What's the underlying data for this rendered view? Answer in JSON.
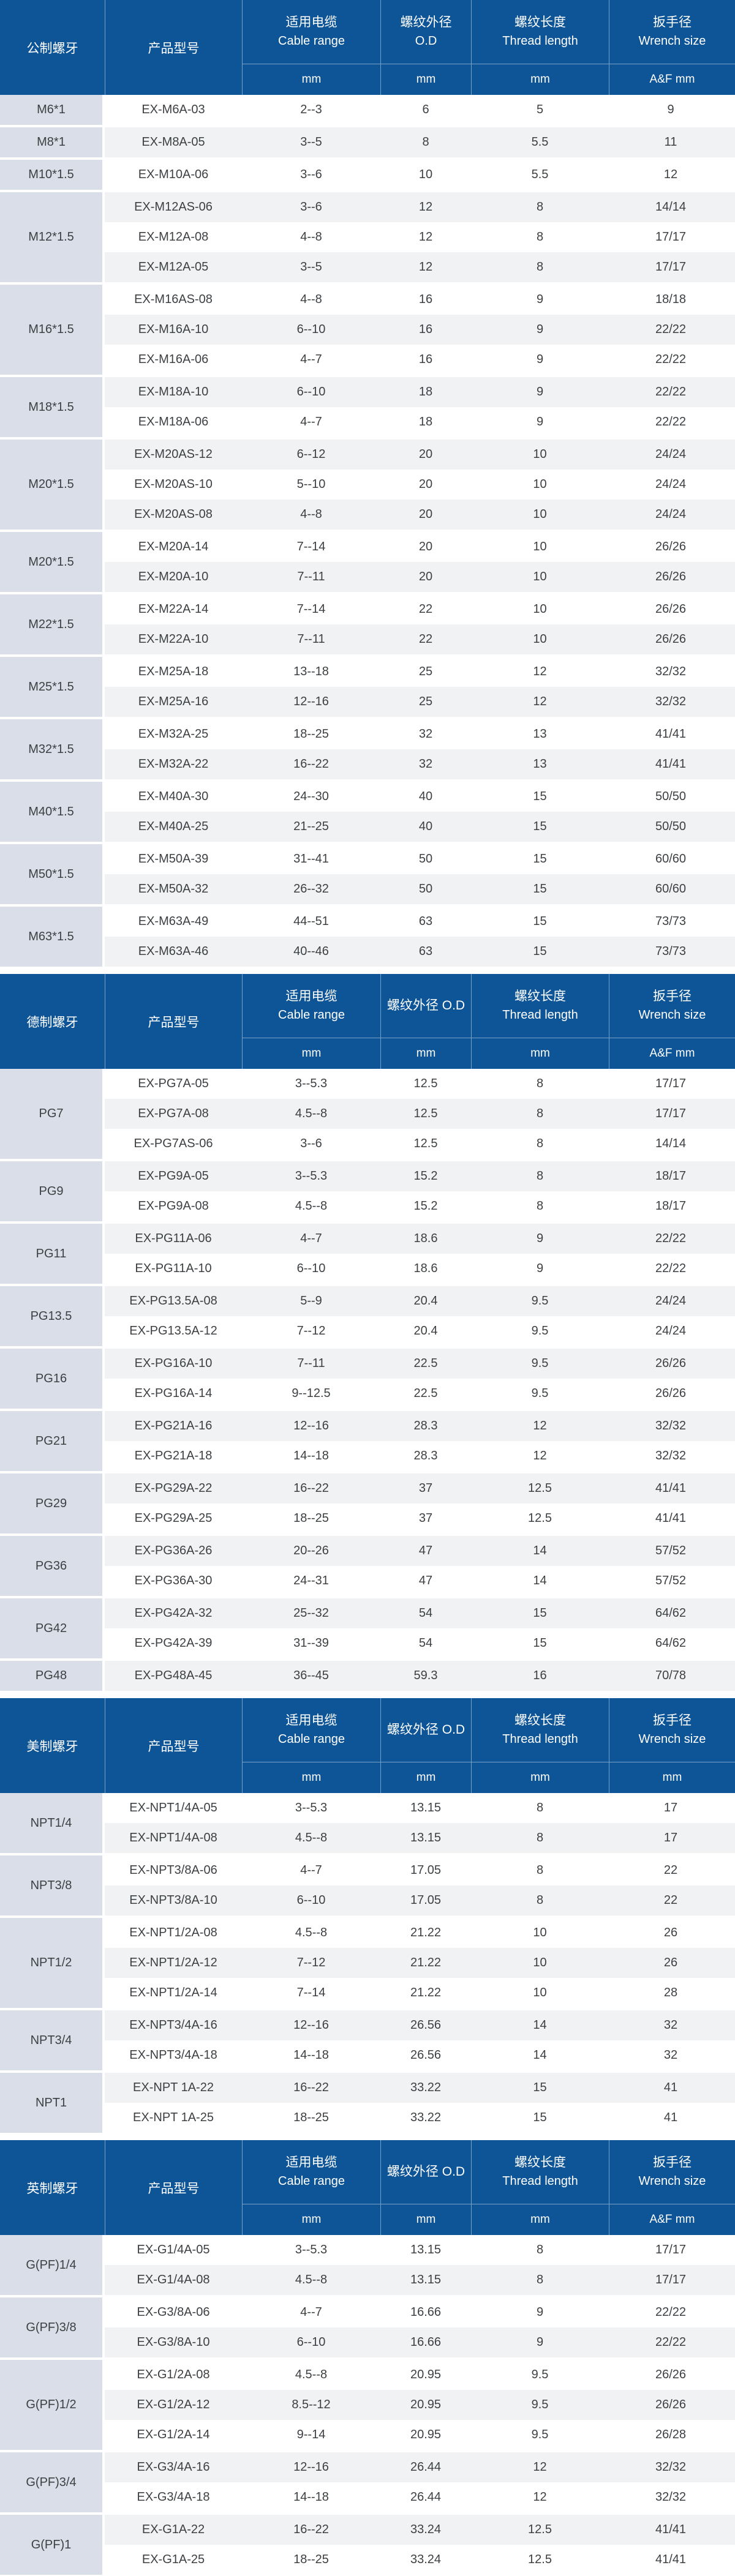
{
  "colors": {
    "header_blue": "#0e5598",
    "label_column_bg": "#d9dee8",
    "stripe_row_bg": "#f1f2f3",
    "plain_row_bg": "#ffffff",
    "body_text": "#3d4043",
    "header_text": "#ffffff"
  },
  "sections": [
    {
      "thread_header": "公制螺牙",
      "model_header": "产品型号",
      "col_headers": [
        {
          "lines": [
            "适用电缆",
            "Cable range"
          ]
        },
        {
          "lines": [
            "螺纹外径",
            "O.D"
          ]
        },
        {
          "lines": [
            "螺纹长度",
            "Thread length"
          ]
        },
        {
          "lines": [
            "扳手径",
            "Wrench size"
          ]
        }
      ],
      "units": [
        "mm",
        "mm",
        "mm",
        "A&F mm"
      ],
      "groups": [
        {
          "label": "M6*1",
          "rows": [
            {
              "model": "EX-M6A-03",
              "cable_range": "2--3",
              "od": "6",
              "thread_length": "5",
              "wrench": "9"
            }
          ]
        },
        {
          "label": "M8*1",
          "rows": [
            {
              "model": "EX-M8A-05",
              "cable_range": "3--5",
              "od": "8",
              "thread_length": "5.5",
              "wrench": "11"
            }
          ]
        },
        {
          "label": "M10*1.5",
          "rows": [
            {
              "model": "EX-M10A-06",
              "cable_range": "3--6",
              "od": "10",
              "thread_length": "5.5",
              "wrench": "12"
            }
          ]
        },
        {
          "label": "M12*1.5",
          "rows": [
            {
              "model": "EX-M12AS-06",
              "cable_range": "3--6",
              "od": "12",
              "thread_length": "8",
              "wrench": "14/14"
            },
            {
              "model": "EX-M12A-08",
              "cable_range": "4--8",
              "od": "12",
              "thread_length": "8",
              "wrench": "17/17"
            },
            {
              "model": "EX-M12A-05",
              "cable_range": "3--5",
              "od": "12",
              "thread_length": "8",
              "wrench": "17/17"
            }
          ]
        },
        {
          "label": "M16*1.5",
          "rows": [
            {
              "model": "EX-M16AS-08",
              "cable_range": "4--8",
              "od": "16",
              "thread_length": "9",
              "wrench": "18/18"
            },
            {
              "model": "EX-M16A-10",
              "cable_range": "6--10",
              "od": "16",
              "thread_length": "9",
              "wrench": "22/22"
            },
            {
              "model": "EX-M16A-06",
              "cable_range": "4--7",
              "od": "16",
              "thread_length": "9",
              "wrench": "22/22"
            }
          ]
        },
        {
          "label": "M18*1.5",
          "rows": [
            {
              "model": "EX-M18A-10",
              "cable_range": "6--10",
              "od": "18",
              "thread_length": "9",
              "wrench": "22/22"
            },
            {
              "model": "EX-M18A-06",
              "cable_range": "4--7",
              "od": "18",
              "thread_length": "9",
              "wrench": "22/22"
            }
          ]
        },
        {
          "label": "M20*1.5",
          "rows": [
            {
              "model": "EX-M20AS-12",
              "cable_range": "6--12",
              "od": "20",
              "thread_length": "10",
              "wrench": "24/24"
            },
            {
              "model": "EX-M20AS-10",
              "cable_range": "5--10",
              "od": "20",
              "thread_length": "10",
              "wrench": "24/24"
            },
            {
              "model": "EX-M20AS-08",
              "cable_range": "4--8",
              "od": "20",
              "thread_length": "10",
              "wrench": "24/24"
            }
          ]
        },
        {
          "label": "M20*1.5",
          "rows": [
            {
              "model": "EX-M20A-14",
              "cable_range": "7--14",
              "od": "20",
              "thread_length": "10",
              "wrench": "26/26"
            },
            {
              "model": "EX-M20A-10",
              "cable_range": "7--11",
              "od": "20",
              "thread_length": "10",
              "wrench": "26/26"
            }
          ]
        },
        {
          "label": "M22*1.5",
          "rows": [
            {
              "model": "EX-M22A-14",
              "cable_range": "7--14",
              "od": "22",
              "thread_length": "10",
              "wrench": "26/26"
            },
            {
              "model": "EX-M22A-10",
              "cable_range": "7--11",
              "od": "22",
              "thread_length": "10",
              "wrench": "26/26"
            }
          ]
        },
        {
          "label": "M25*1.5",
          "rows": [
            {
              "model": "EX-M25A-18",
              "cable_range": "13--18",
              "od": "25",
              "thread_length": "12",
              "wrench": "32/32"
            },
            {
              "model": "EX-M25A-16",
              "cable_range": "12--16",
              "od": "25",
              "thread_length": "12",
              "wrench": "32/32"
            }
          ]
        },
        {
          "label": "M32*1.5",
          "rows": [
            {
              "model": "EX-M32A-25",
              "cable_range": "18--25",
              "od": "32",
              "thread_length": "13",
              "wrench": "41/41"
            },
            {
              "model": "EX-M32A-22",
              "cable_range": "16--22",
              "od": "32",
              "thread_length": "13",
              "wrench": "41/41"
            }
          ]
        },
        {
          "label": "M40*1.5",
          "rows": [
            {
              "model": "EX-M40A-30",
              "cable_range": "24--30",
              "od": "40",
              "thread_length": "15",
              "wrench": "50/50"
            },
            {
              "model": "EX-M40A-25",
              "cable_range": "21--25",
              "od": "40",
              "thread_length": "15",
              "wrench": "50/50"
            }
          ]
        },
        {
          "label": "M50*1.5",
          "rows": [
            {
              "model": "EX-M50A-39",
              "cable_range": "31--41",
              "od": "50",
              "thread_length": "15",
              "wrench": "60/60"
            },
            {
              "model": "EX-M50A-32",
              "cable_range": "26--32",
              "od": "50",
              "thread_length": "15",
              "wrench": "60/60"
            }
          ]
        },
        {
          "label": "M63*1.5",
          "rows": [
            {
              "model": "EX-M63A-49",
              "cable_range": "44--51",
              "od": "63",
              "thread_length": "15",
              "wrench": "73/73"
            },
            {
              "model": "EX-M63A-46",
              "cable_range": "40--46",
              "od": "63",
              "thread_length": "15",
              "wrench": "73/73"
            }
          ]
        }
      ]
    },
    {
      "thread_header": "德制螺牙",
      "model_header": "产品型号",
      "col_headers": [
        {
          "lines": [
            "适用电缆",
            "Cable range"
          ]
        },
        {
          "lines": [
            "螺纹外径 O.D"
          ]
        },
        {
          "lines": [
            "螺纹长度",
            "Thread length"
          ]
        },
        {
          "lines": [
            "扳手径",
            "Wrench size"
          ]
        }
      ],
      "units": [
        "mm",
        "mm",
        "mm",
        "A&F mm"
      ],
      "groups": [
        {
          "label": "PG7",
          "rows": [
            {
              "model": "EX-PG7A-05",
              "cable_range": "3--5.3",
              "od": "12.5",
              "thread_length": "8",
              "wrench": "17/17"
            },
            {
              "model": "EX-PG7A-08",
              "cable_range": "4.5--8",
              "od": "12.5",
              "thread_length": "8",
              "wrench": "17/17"
            },
            {
              "model": "EX-PG7AS-06",
              "cable_range": "3--6",
              "od": "12.5",
              "thread_length": "8",
              "wrench": "14/14"
            }
          ]
        },
        {
          "label": "PG9",
          "rows": [
            {
              "model": "EX-PG9A-05",
              "cable_range": "3--5.3",
              "od": "15.2",
              "thread_length": "8",
              "wrench": "18/17"
            },
            {
              "model": "EX-PG9A-08",
              "cable_range": "4.5--8",
              "od": "15.2",
              "thread_length": "8",
              "wrench": "18/17"
            }
          ]
        },
        {
          "label": "PG11",
          "rows": [
            {
              "model": "EX-PG11A-06",
              "cable_range": "4--7",
              "od": "18.6",
              "thread_length": "9",
              "wrench": "22/22"
            },
            {
              "model": "EX-PG11A-10",
              "cable_range": "6--10",
              "od": "18.6",
              "thread_length": "9",
              "wrench": "22/22"
            }
          ]
        },
        {
          "label": "PG13.5",
          "rows": [
            {
              "model": "EX-PG13.5A-08",
              "cable_range": "5--9",
              "od": "20.4",
              "thread_length": "9.5",
              "wrench": "24/24"
            },
            {
              "model": "EX-PG13.5A-12",
              "cable_range": "7--12",
              "od": "20.4",
              "thread_length": "9.5",
              "wrench": "24/24"
            }
          ]
        },
        {
          "label": "PG16",
          "rows": [
            {
              "model": "EX-PG16A-10",
              "cable_range": "7--11",
              "od": "22.5",
              "thread_length": "9.5",
              "wrench": "26/26"
            },
            {
              "model": "EX-PG16A-14",
              "cable_range": "9--12.5",
              "od": "22.5",
              "thread_length": "9.5",
              "wrench": "26/26"
            }
          ]
        },
        {
          "label": "PG21",
          "rows": [
            {
              "model": "EX-PG21A-16",
              "cable_range": "12--16",
              "od": "28.3",
              "thread_length": "12",
              "wrench": "32/32"
            },
            {
              "model": "EX-PG21A-18",
              "cable_range": "14--18",
              "od": "28.3",
              "thread_length": "12",
              "wrench": "32/32"
            }
          ]
        },
        {
          "label": "PG29",
          "rows": [
            {
              "model": "EX-PG29A-22",
              "cable_range": "16--22",
              "od": "37",
              "thread_length": "12.5",
              "wrench": "41/41"
            },
            {
              "model": "EX-PG29A-25",
              "cable_range": "18--25",
              "od": "37",
              "thread_length": "12.5",
              "wrench": "41/41"
            }
          ]
        },
        {
          "label": "PG36",
          "rows": [
            {
              "model": "EX-PG36A-26",
              "cable_range": "20--26",
              "od": "47",
              "thread_length": "14",
              "wrench": "57/52"
            },
            {
              "model": "EX-PG36A-30",
              "cable_range": "24--31",
              "od": "47",
              "thread_length": "14",
              "wrench": "57/52"
            }
          ]
        },
        {
          "label": "PG42",
          "rows": [
            {
              "model": "EX-PG42A-32",
              "cable_range": "25--32",
              "od": "54",
              "thread_length": "15",
              "wrench": "64/62"
            },
            {
              "model": "EX-PG42A-39",
              "cable_range": "31--39",
              "od": "54",
              "thread_length": "15",
              "wrench": "64/62"
            }
          ]
        },
        {
          "label": "PG48",
          "rows": [
            {
              "model": "EX-PG48A-45",
              "cable_range": "36--45",
              "od": "59.3",
              "thread_length": "16",
              "wrench": "70/78"
            }
          ]
        }
      ]
    },
    {
      "thread_header": "美制螺牙",
      "model_header": "产品型号",
      "col_headers": [
        {
          "lines": [
            "适用电缆",
            "Cable range"
          ]
        },
        {
          "lines": [
            "螺纹外径 O.D"
          ]
        },
        {
          "lines": [
            "螺纹长度",
            "Thread length"
          ]
        },
        {
          "lines": [
            "扳手径",
            "Wrench size"
          ]
        }
      ],
      "units": [
        "mm",
        "mm",
        "mm",
        "mm"
      ],
      "groups": [
        {
          "label": "NPT1/4",
          "rows": [
            {
              "model": "EX-NPT1/4A-05",
              "cable_range": "3--5.3",
              "od": "13.15",
              "thread_length": "8",
              "wrench": "17"
            },
            {
              "model": "EX-NPT1/4A-08",
              "cable_range": "4.5--8",
              "od": "13.15",
              "thread_length": "8",
              "wrench": "17"
            }
          ]
        },
        {
          "label": "NPT3/8",
          "rows": [
            {
              "model": "EX-NPT3/8A-06",
              "cable_range": "4--7",
              "od": "17.05",
              "thread_length": "8",
              "wrench": "22"
            },
            {
              "model": "EX-NPT3/8A-10",
              "cable_range": "6--10",
              "od": "17.05",
              "thread_length": "8",
              "wrench": "22"
            }
          ]
        },
        {
          "label": "NPT1/2",
          "rows": [
            {
              "model": "EX-NPT1/2A-08",
              "cable_range": "4.5--8",
              "od": "21.22",
              "thread_length": "10",
              "wrench": "26"
            },
            {
              "model": "EX-NPT1/2A-12",
              "cable_range": "7--12",
              "od": "21.22",
              "thread_length": "10",
              "wrench": "26"
            },
            {
              "model": "EX-NPT1/2A-14",
              "cable_range": "7--14",
              "od": "21.22",
              "thread_length": "10",
              "wrench": "28"
            }
          ]
        },
        {
          "label": "NPT3/4",
          "rows": [
            {
              "model": "EX-NPT3/4A-16",
              "cable_range": "12--16",
              "od": "26.56",
              "thread_length": "14",
              "wrench": "32"
            },
            {
              "model": "EX-NPT3/4A-18",
              "cable_range": "14--18",
              "od": "26.56",
              "thread_length": "14",
              "wrench": "32"
            }
          ]
        },
        {
          "label": "NPT1",
          "rows": [
            {
              "model": "EX-NPT 1A-22",
              "cable_range": "16--22",
              "od": "33.22",
              "thread_length": "15",
              "wrench": "41"
            },
            {
              "model": "EX-NPT 1A-25",
              "cable_range": "18--25",
              "od": "33.22",
              "thread_length": "15",
              "wrench": "41"
            }
          ]
        }
      ]
    },
    {
      "thread_header": "英制螺牙",
      "model_header": "产品型号",
      "col_headers": [
        {
          "lines": [
            "适用电缆",
            "Cable range"
          ]
        },
        {
          "lines": [
            "螺纹外径 O.D"
          ]
        },
        {
          "lines": [
            "螺纹长度",
            "Thread length"
          ]
        },
        {
          "lines": [
            "扳手径",
            "Wrench size"
          ]
        }
      ],
      "units": [
        "mm",
        "mm",
        "mm",
        "A&F mm"
      ],
      "groups": [
        {
          "label": "G(PF)1/4",
          "rows": [
            {
              "model": "EX-G1/4A-05",
              "cable_range": "3--5.3",
              "od": "13.15",
              "thread_length": "8",
              "wrench": "17/17"
            },
            {
              "model": "EX-G1/4A-08",
              "cable_range": "4.5--8",
              "od": "13.15",
              "thread_length": "8",
              "wrench": "17/17"
            }
          ]
        },
        {
          "label": "G(PF)3/8",
          "rows": [
            {
              "model": "EX-G3/8A-06",
              "cable_range": "4--7",
              "od": "16.66",
              "thread_length": "9",
              "wrench": "22/22"
            },
            {
              "model": "EX-G3/8A-10",
              "cable_range": "6--10",
              "od": "16.66",
              "thread_length": "9",
              "wrench": "22/22"
            }
          ]
        },
        {
          "label": "G(PF)1/2",
          "rows": [
            {
              "model": "EX-G1/2A-08",
              "cable_range": "4.5--8",
              "od": "20.95",
              "thread_length": "9.5",
              "wrench": "26/26"
            },
            {
              "model": "EX-G1/2A-12",
              "cable_range": "8.5--12",
              "od": "20.95",
              "thread_length": "9.5",
              "wrench": "26/26"
            },
            {
              "model": "EX-G1/2A-14",
              "cable_range": "9--14",
              "od": "20.95",
              "thread_length": "9.5",
              "wrench": "26/28"
            }
          ]
        },
        {
          "label": "G(PF)3/4",
          "rows": [
            {
              "model": "EX-G3/4A-16",
              "cable_range": "12--16",
              "od": "26.44",
              "thread_length": "12",
              "wrench": "32/32"
            },
            {
              "model": "EX-G3/4A-18",
              "cable_range": "14--18",
              "od": "26.44",
              "thread_length": "12",
              "wrench": "32/32"
            }
          ]
        },
        {
          "label": "G(PF)1",
          "rows": [
            {
              "model": "EX-G1A-22",
              "cable_range": "16--22",
              "od": "33.24",
              "thread_length": "12.5",
              "wrench": "41/41"
            },
            {
              "model": "EX-G1A-25",
              "cable_range": "18--25",
              "od": "33.24",
              "thread_length": "12.5",
              "wrench": "41/41"
            }
          ]
        }
      ]
    }
  ]
}
